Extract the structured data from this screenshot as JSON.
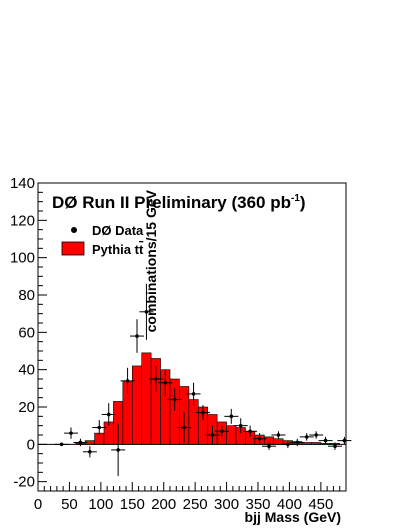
{
  "chart_data": {
    "type": "bar",
    "title": "DØ Run II Preliminary (360 pb",
    "title_superscript": "-1",
    "title_suffix": ")",
    "xlabel": "bjj Mass (GeV)",
    "ylabel": "combinations/15 GeV",
    "xlim": [
      0,
      490
    ],
    "ylim": [
      -25,
      140
    ],
    "bin_width": 15,
    "x_ticks": [
      0,
      50,
      100,
      150,
      200,
      250,
      300,
      350,
      400,
      450
    ],
    "y_ticks": [
      -20,
      0,
      20,
      40,
      60,
      80,
      100,
      120,
      140
    ],
    "fill_color": "#ff0000",
    "legend": {
      "position": "top-left",
      "entries": [
        {
          "label": "DØ Data",
          "marker": "point"
        },
        {
          "label": "Pythia t",
          "label_suffix": "t",
          "marker": "box"
        }
      ]
    },
    "series": [
      {
        "name": "Pythia tt",
        "kind": "histogram",
        "bin_low_edges": [
          0,
          15,
          30,
          45,
          60,
          75,
          90,
          105,
          120,
          135,
          150,
          165,
          180,
          195,
          210,
          225,
          240,
          255,
          270,
          285,
          300,
          315,
          330,
          345,
          360,
          375,
          390,
          405,
          420,
          435,
          450,
          465,
          480
        ],
        "values": [
          0,
          0,
          0,
          0,
          0.5,
          2,
          6,
          12,
          23,
          34,
          42,
          49,
          46,
          40,
          35,
          31,
          24,
          20,
          16,
          12,
          10,
          9,
          7,
          5,
          4,
          3,
          2,
          1.5,
          1,
          1,
          0.5,
          0.5,
          0
        ]
      },
      {
        "name": "DØ Data",
        "kind": "points",
        "x": [
          37.5,
          52.5,
          67.5,
          82.5,
          97.5,
          112.5,
          127.5,
          142.5,
          157.5,
          172.5,
          187.5,
          202.5,
          217.5,
          232.5,
          247.5,
          262.5,
          277.5,
          292.5,
          307.5,
          322.5,
          337.5,
          352.5,
          367.5,
          382.5,
          397.5,
          412.5,
          427.5,
          442.5,
          457.5,
          472.5,
          487.5
        ],
        "y": [
          0,
          6,
          1,
          -4,
          9,
          16,
          -3,
          34,
          58,
          71,
          35,
          33,
          24,
          9,
          27,
          17,
          5,
          7,
          15,
          10,
          7,
          3,
          -1,
          5,
          0,
          1,
          4,
          5,
          2,
          -1,
          2
        ],
        "err": [
          0,
          3,
          2,
          3,
          4,
          6,
          14,
          7,
          9,
          15,
          7,
          7,
          6,
          8,
          6,
          4,
          5,
          3,
          4,
          4,
          3,
          3,
          2,
          2,
          2,
          2,
          2,
          2,
          2,
          2,
          2
        ]
      }
    ]
  }
}
